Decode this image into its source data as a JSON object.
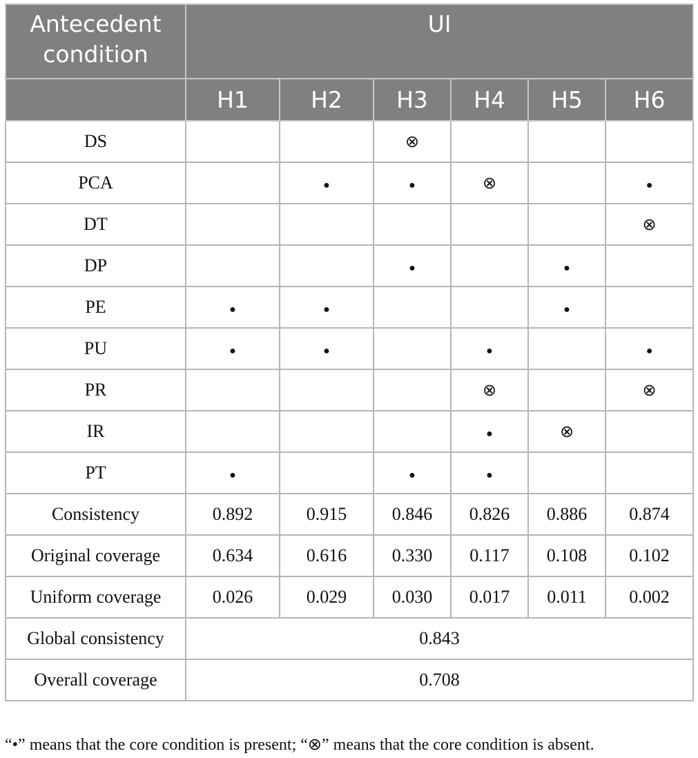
{
  "table": {
    "header": {
      "corner": "Antecedent condition",
      "group": "UI",
      "columns": [
        "H1",
        "H2",
        "H3",
        "H4",
        "H5",
        "H6"
      ]
    },
    "rows": [
      {
        "label": "DS",
        "cells": [
          null,
          null,
          "⊗",
          null,
          null,
          null
        ]
      },
      {
        "label": "PCA",
        "cells": [
          null,
          "●",
          "●",
          "⊗",
          null,
          "●"
        ]
      },
      {
        "label": "DT",
        "cells": [
          null,
          null,
          null,
          null,
          null,
          "⊗"
        ]
      },
      {
        "label": "DP",
        "cells": [
          null,
          null,
          "●",
          null,
          "●",
          null
        ]
      },
      {
        "label": "PE",
        "cells": [
          "●",
          "●",
          null,
          null,
          "●",
          null
        ]
      },
      {
        "label": "PU",
        "cells": [
          "●",
          "●",
          null,
          "●",
          null,
          "●"
        ]
      },
      {
        "label": "PR",
        "cells": [
          null,
          null,
          null,
          "⊗",
          null,
          "⊗"
        ]
      },
      {
        "label": "IR",
        "cells": [
          null,
          null,
          null,
          "●",
          "⊗",
          null
        ]
      },
      {
        "label": "PT",
        "cells": [
          "●",
          null,
          "●",
          "●",
          null,
          null
        ]
      },
      {
        "label": "Consistency",
        "cells": [
          "0.892",
          "0.915",
          "0.846",
          "0.826",
          "0.886",
          "0.874"
        ]
      },
      {
        "label": "Original coverage",
        "cells": [
          "0.634",
          "0.616",
          "0.330",
          "0.117",
          "0.108",
          "0.102"
        ]
      },
      {
        "label": "Uniform coverage",
        "cells": [
          "0.026",
          "0.029",
          "0.030",
          "0.017",
          "0.011",
          "0.002"
        ]
      }
    ],
    "summary": [
      {
        "label": "Global consistency",
        "value": "0.843"
      },
      {
        "label": "Overall coverage",
        "value": "0.708"
      }
    ]
  },
  "footnote": "“•” means that the core condition is present; “⊗” means that the core condition is absent."
}
